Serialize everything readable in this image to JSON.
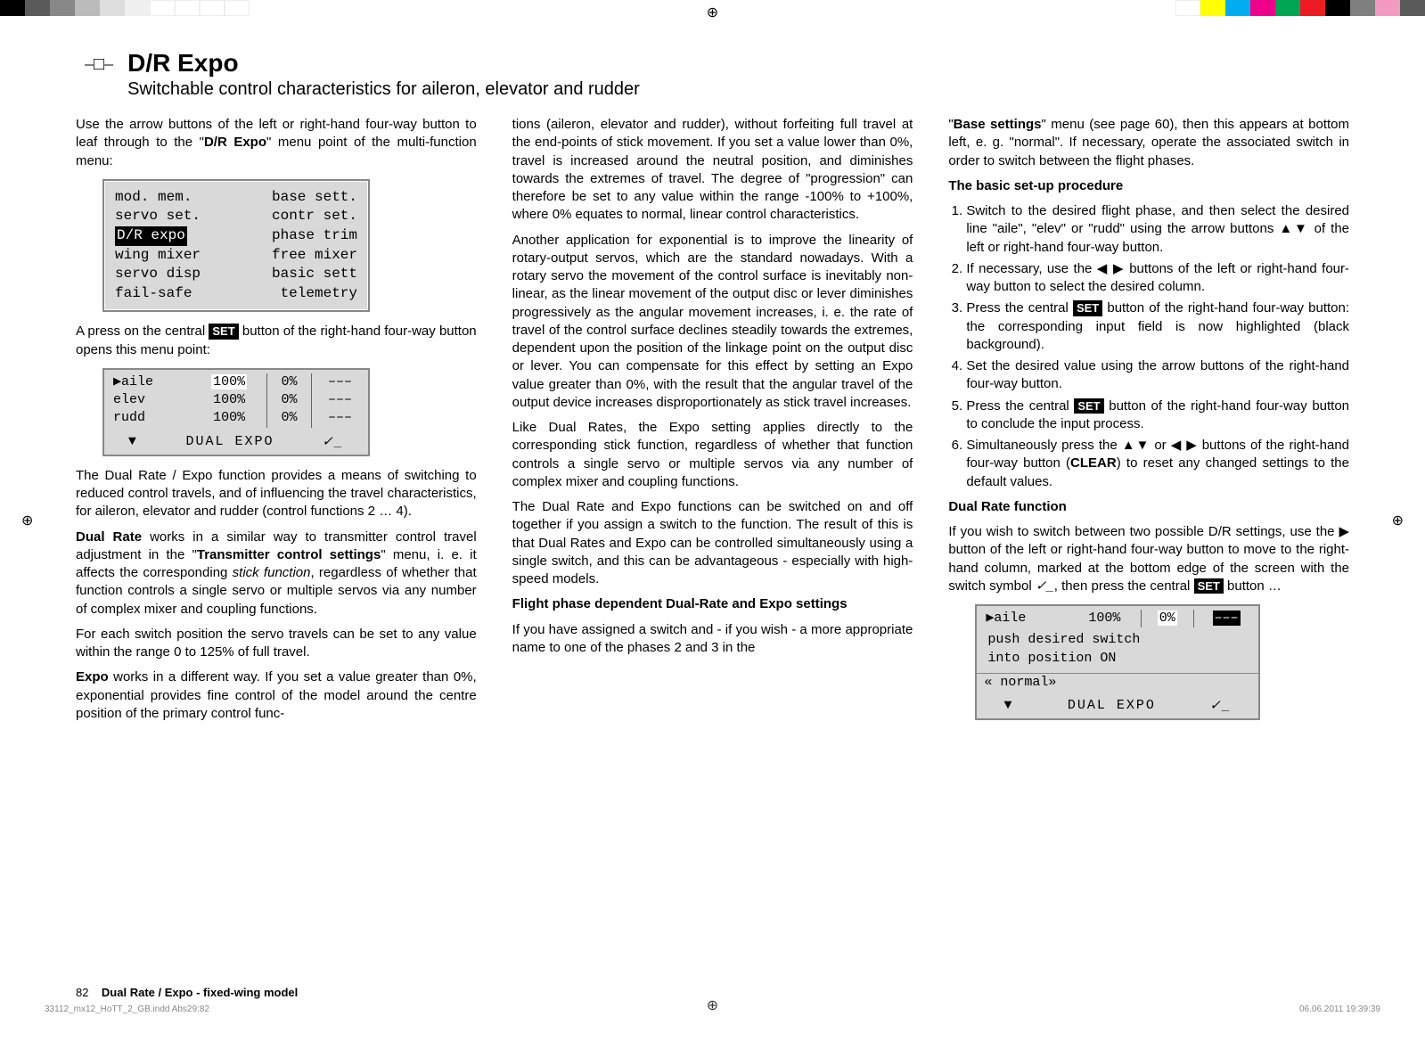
{
  "colorBarsLeft": [
    "#000000",
    "#5a5a5a",
    "#888888",
    "#bbbbbb",
    "#dddddd",
    "#f0f0f0",
    "#ffffff",
    "#ffffff",
    "#ffffff",
    "#ffffff"
  ],
  "colorBarsRight": [
    "#ffffff",
    "#ffff00",
    "#00aeef",
    "#ec008c",
    "#00a651",
    "#ed1c24",
    "#000000",
    "#7f7f7f",
    "#f49ac1",
    "#5a5a5a"
  ],
  "header": {
    "title": "D/R Expo",
    "subtitle": "Switchable control characteristics for aileron, elevator and rudder"
  },
  "col1": {
    "p1_a": "Use the arrow buttons of the left or right-hand four-way button to leaf through to the \"",
    "p1_b": "D/R Expo",
    "p1_c": "\" menu point of the multi-function menu:",
    "lcd1": {
      "rows": [
        [
          "mod. mem.",
          "base sett."
        ],
        [
          "servo set.",
          "contr set."
        ],
        [
          "D/R expo",
          "phase trim"
        ],
        [
          "wing mixer",
          "free mixer"
        ],
        [
          "servo disp",
          "basic sett"
        ],
        [
          "fail-safe",
          "telemetry"
        ]
      ],
      "highlightRow": 2
    },
    "p2_a": "A press on the central ",
    "p2_set": "SET",
    "p2_b": " button of the right-hand four-way button opens this menu point:",
    "lcd2": {
      "rows": [
        [
          "▶aile",
          "100%",
          "0%",
          "–––"
        ],
        [
          " elev",
          "100%",
          "0%",
          "–––"
        ],
        [
          " rudd",
          "100%",
          "0%",
          "–––"
        ]
      ],
      "highlightCell": {
        "r": 0,
        "c": 1
      },
      "footer_left": "▼",
      "footer_mid": "DUAL  EXPO",
      "footer_right": "✓_"
    },
    "p3": "The Dual Rate / Expo function provides a means of switching to reduced control travels, and of influencing the travel characteristics, for aileron, elevator and rudder (control functions 2 … 4).",
    "p4_a": "Dual Rate",
    "p4_b": " works in a similar way to transmitter control travel adjustment in the \"",
    "p4_c": "Transmitter control settings",
    "p4_d": "\" menu, i. e. it affects the corresponding ",
    "p4_e": "stick function",
    "p4_f": ", regardless of whether that function controls a single servo or multiple servos via any number of complex mixer and coupling functions.",
    "p5": "For each switch position the servo travels can be set to any value within the range 0 to 125% of full travel.",
    "p6_a": "Expo",
    "p6_b": " works in a different way. If you set a value greater than 0%, exponential provides fine control of the model around the centre position of the primary control func-"
  },
  "col2": {
    "p1": "tions (aileron, elevator and rudder), without forfeiting full travel at the end-points of stick movement. If you set a value lower than 0%, travel is increased around the neutral position, and diminishes towards the extremes of travel. The degree of \"progression\" can therefore be set to any value within the range -100% to +100%, where 0% equates to normal, linear control characteristics.",
    "p2": "Another application for exponential is to improve the linearity of rotary-output servos, which are the standard nowadays. With a rotary servo the movement of the control surface is inevitably non-linear, as the linear movement of the output disc or lever diminishes progressively as the angular movement increases, i. e. the rate of travel of the control surface declines steadily towards the extremes, dependent upon the position of the linkage point on the output disc or lever. You can compensate for this effect by setting an Expo value greater than 0%, with the result that the angular travel of the output device increases disproportionately as stick travel increases.",
    "p3": "Like Dual Rates, the Expo setting applies directly to the corresponding stick function, regardless of whether that function controls a single servo or multiple servos via any number of complex mixer and coupling functions.",
    "p4": "The Dual Rate and Expo functions can be switched on and off together if you assign a switch to the function. The result of this is that Dual Rates and Expo can be controlled simultaneously using a single switch, and this can be advantageous - especially with high-speed models.",
    "h1": "Flight phase dependent Dual-Rate and Expo settings",
    "p5": "If you have assigned a switch and - if you wish - a more appropriate name to one of the phases 2 and 3 in the"
  },
  "col3": {
    "p1_a": "\"",
    "p1_b": "Base settings",
    "p1_c": "\" menu (see page 60), then this appears at bottom left, e. g. \"normal\". If necessary, operate the associated switch in order to switch between the flight phases.",
    "h1": "The basic set-up procedure",
    "ol": [
      {
        "t": "Switch to the desired flight phase, and then select the desired line \"aile\", \"elev\" or \"rudd\" using the arrow buttons ▲▼ of the left or right-hand four-way button."
      },
      {
        "t": "If necessary, use the ◀ ▶ buttons of the left or right-hand four-way button to select the desired column."
      },
      {
        "a": "Press the central ",
        "set": "SET",
        "b": " button of the right-hand four-way button: the corresponding input field is now highlighted (black background)."
      },
      {
        "t": "Set the desired value using the arrow buttons of the right-hand four-way button."
      },
      {
        "a": "Press the central ",
        "set": "SET",
        "b": " button of the right-hand four-way button to conclude the input process."
      },
      {
        "a": "Simultaneously press the ▲▼ or ◀ ▶ buttons of the right-hand four-way button (",
        "bold": "CLEAR",
        "b": ") to reset any changed settings to the default values."
      }
    ],
    "h2": "Dual Rate function",
    "p2_a": "If you wish to switch between two possible D/R settings, use the ▶ button of the left or right-hand four-way button to move to the right-hand column, marked at the bottom edge of the screen with the switch symbol ",
    "p2_sw": "✓_",
    "p2_b": ", then press the central ",
    "p2_set": "SET",
    "p2_c": " button …",
    "lcd3": {
      "row": [
        "▶aile",
        "100%",
        "0%",
        "–––"
      ],
      "msg1": "push desired switch",
      "msg2": "into position ON",
      "phase": "« normal»",
      "footer_left": "▼",
      "footer_mid": "DUAL  EXPO",
      "footer_right": "✓_"
    }
  },
  "pageNum": "82",
  "pageFooter": "Dual Rate / Expo - fixed-wing model",
  "meta": {
    "left": "33112_mx12_HoTT_2_GB.indd   Abs29:82",
    "right": "06.06.2011   19:39:39"
  }
}
